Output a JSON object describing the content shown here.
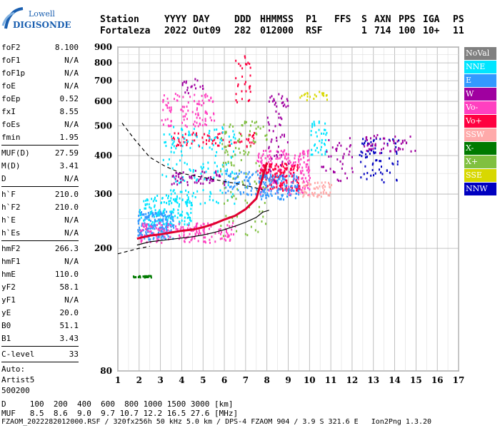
{
  "logo": {
    "top": "Lowell",
    "bottom": "DIGISONDE"
  },
  "header": {
    "labels": [
      "Station",
      "YYYY",
      "DAY",
      "DDD",
      "HHMMSS",
      "P1",
      "FFS",
      "S",
      "AXN",
      "PPS",
      "IGA",
      "PS"
    ],
    "values": [
      "Fortaleza",
      "2022",
      "Out09",
      "282",
      "012000",
      "RSF",
      "",
      "1",
      "714",
      "100",
      "10+",
      "11"
    ]
  },
  "params": [
    [
      {
        "k": "foF2",
        "v": "8.100"
      },
      {
        "k": "foF1",
        "v": "N/A"
      },
      {
        "k": "foF1p",
        "v": "N/A"
      },
      {
        "k": "foE",
        "v": "N/A"
      },
      {
        "k": "foEp",
        "v": "0.52"
      },
      {
        "k": "fxI",
        "v": "8.55"
      },
      {
        "k": "foEs",
        "v": "N/A"
      },
      {
        "k": "fmin",
        "v": "1.95"
      }
    ],
    [
      {
        "k": "MUF(D)",
        "v": "27.59"
      },
      {
        "k": "M(D)",
        "v": "3.41"
      },
      {
        "k": "D",
        "v": "N/A"
      }
    ],
    [
      {
        "k": "h`F",
        "v": "210.0"
      },
      {
        "k": "h`F2",
        "v": "210.0"
      },
      {
        "k": "h`E",
        "v": "N/A"
      },
      {
        "k": "h`Es",
        "v": "N/A"
      }
    ],
    [
      {
        "k": "hmF2",
        "v": "266.3"
      },
      {
        "k": "hmF1",
        "v": "N/A"
      },
      {
        "k": "hmE",
        "v": "110.0"
      },
      {
        "k": "yF2",
        "v": "58.1"
      },
      {
        "k": "yF1",
        "v": "N/A"
      },
      {
        "k": "yE",
        "v": "20.0"
      },
      {
        "k": "B0",
        "v": "51.1"
      },
      {
        "k": "B1",
        "v": "3.43"
      }
    ],
    [
      {
        "k": "C-level",
        "v": "33"
      }
    ]
  ],
  "auto": [
    "Auto:",
    "Artist5",
    "500200"
  ],
  "legend": [
    {
      "label": "NoVal",
      "color": "#808080"
    },
    {
      "label": "NNE",
      "color": "#00e5ff"
    },
    {
      "label": "E",
      "color": "#3399ff"
    },
    {
      "label": "W",
      "color": "#a000a0"
    },
    {
      "label": "Vo-",
      "color": "#ff40c0"
    },
    {
      "label": "Vo+",
      "color": "#ff0040"
    },
    {
      "label": "SSW",
      "color": "#ffaaaa"
    },
    {
      "label": "X-",
      "color": "#007a00"
    },
    {
      "label": "X+",
      "color": "#80c040"
    },
    {
      "label": "SSE",
      "color": "#d8d800"
    },
    {
      "label": "NNW",
      "color": "#0000c0"
    }
  ],
  "footer": {
    "line1": "D     100  200  400  600  800 1000 1500 3000 [km]",
    "line2": "MUF   8.5  8.6  9.0  9.7 10.7 12.2 16.5 27.6 [MHz]",
    "line3": "FZAOM_2022282012000.RSF / 320fx256h 50 kHz 5.0 km / DPS-4 FZAOM 904 / 3.9 S 321.6 E   Ion2Png 1.3.20"
  },
  "chart_data": {
    "type": "scatter",
    "x_ticks": [
      1,
      2,
      3,
      4,
      5,
      6,
      7,
      8,
      9,
      10,
      11,
      12,
      13,
      14,
      15,
      16,
      17
    ],
    "y_ticks": [
      80,
      200,
      300,
      400,
      500,
      600,
      700,
      800,
      900
    ],
    "xlim": [
      1,
      17
    ],
    "ylim": [
      80,
      900
    ],
    "y_scale": "log",
    "grid": true,
    "xlabel": "",
    "ylabel": "",
    "traces": [
      {
        "name": "ordinary trace",
        "color": "#e00030",
        "x": [
          1.9,
          2.5,
          3.0,
          3.5,
          4.0,
          4.5,
          5.0,
          5.5,
          6.0,
          6.5,
          7.0,
          7.5,
          7.8,
          8.0
        ],
        "y": [
          215,
          220,
          222,
          225,
          228,
          230,
          234,
          240,
          248,
          255,
          268,
          290,
          340,
          380
        ]
      },
      {
        "name": "profile",
        "color": "#000000",
        "x": [
          1.9,
          2.5,
          3.0,
          3.5,
          4.0,
          4.5,
          5.0,
          5.5,
          6.0,
          6.5,
          7.0,
          7.5,
          7.8,
          8.1
        ],
        "y": [
          205,
          210,
          212,
          214,
          216,
          218,
          221,
          225,
          230,
          236,
          243,
          252,
          262,
          266
        ]
      },
      {
        "name": "muf",
        "color": "#000000",
        "dashed": true,
        "x": [
          1.2,
          1.8,
          2.5,
          3.2,
          4.0,
          5.0,
          6.0,
          7.0,
          7.8
        ],
        "y": [
          510,
          450,
          395,
          370,
          350,
          340,
          330,
          320,
          310
        ]
      },
      {
        "name": "lower dashed",
        "color": "#000000",
        "dashed": true,
        "x": [
          1.0,
          1.5,
          2.0,
          2.5
        ],
        "y": [
          192,
          196,
          200,
          203
        ]
      }
    ],
    "clusters": [
      {
        "color": "#3399ff",
        "x": [
          1.9,
          3.6
        ],
        "y": [
          215,
          265
        ],
        "n": 220
      },
      {
        "color": "#00e5ff",
        "x": [
          2.0,
          4.5
        ],
        "y": [
          240,
          300
        ],
        "n": 140
      },
      {
        "color": "#ff40c0",
        "x": [
          2.0,
          6.5
        ],
        "y": [
          210,
          245
        ],
        "n": 160
      },
      {
        "color": "#ff0040",
        "x": [
          3.5,
          7.5
        ],
        "y": [
          430,
          480
        ],
        "n": 80
      },
      {
        "color": "#ff40c0",
        "x": [
          3.0,
          5.5
        ],
        "y": [
          500,
          640
        ],
        "n": 100
      },
      {
        "color": "#00e5ff",
        "x": [
          3.0,
          6.5
        ],
        "y": [
          280,
          500
        ],
        "n": 160
      },
      {
        "color": "#3399ff",
        "x": [
          6.0,
          8.0
        ],
        "y": [
          300,
          360
        ],
        "n": 80
      },
      {
        "color": "#a000a0",
        "x": [
          3.5,
          6.0
        ],
        "y": [
          320,
          360
        ],
        "n": 60
      },
      {
        "color": "#80c040",
        "x": [
          5.8,
          8.0
        ],
        "y": [
          220,
          520
        ],
        "n": 120
      },
      {
        "color": "#ff40c0",
        "x": [
          7.5,
          10.0
        ],
        "y": [
          300,
          420
        ],
        "n": 200
      },
      {
        "color": "#ff0040",
        "x": [
          7.6,
          9.5
        ],
        "y": [
          310,
          380
        ],
        "n": 160
      },
      {
        "color": "#3399ff",
        "x": [
          7.6,
          9.5
        ],
        "y": [
          290,
          350
        ],
        "n": 120
      },
      {
        "color": "#a000a0",
        "x": [
          8.0,
          9.0
        ],
        "y": [
          320,
          640
        ],
        "n": 60
      },
      {
        "color": "#ffaaaa",
        "x": [
          9.5,
          11.0
        ],
        "y": [
          295,
          330
        ],
        "n": 60
      },
      {
        "color": "#d8d800",
        "x": [
          9.5,
          10.8
        ],
        "y": [
          610,
          650
        ],
        "n": 20
      },
      {
        "color": "#00e5ff",
        "x": [
          10.0,
          10.8
        ],
        "y": [
          400,
          520
        ],
        "n": 40
      },
      {
        "color": "#a000a0",
        "x": [
          10.5,
          12.0
        ],
        "y": [
          330,
          460
        ],
        "n": 40
      },
      {
        "color": "#0000c0",
        "x": [
          12.3,
          14.2
        ],
        "y": [
          330,
          460
        ],
        "n": 70
      },
      {
        "color": "#a000a0",
        "x": [
          12.5,
          15.0
        ],
        "y": [
          410,
          470
        ],
        "n": 50
      },
      {
        "color": "#ff0040",
        "x": [
          6.5,
          7.2
        ],
        "y": [
          600,
          850
        ],
        "n": 30
      },
      {
        "color": "#007a00",
        "x": [
          1.7,
          2.6
        ],
        "y": [
          162,
          164
        ],
        "n": 30
      },
      {
        "color": "#a000a0",
        "x": [
          4.0,
          5.0
        ],
        "y": [
          640,
          720
        ],
        "n": 20
      }
    ]
  }
}
